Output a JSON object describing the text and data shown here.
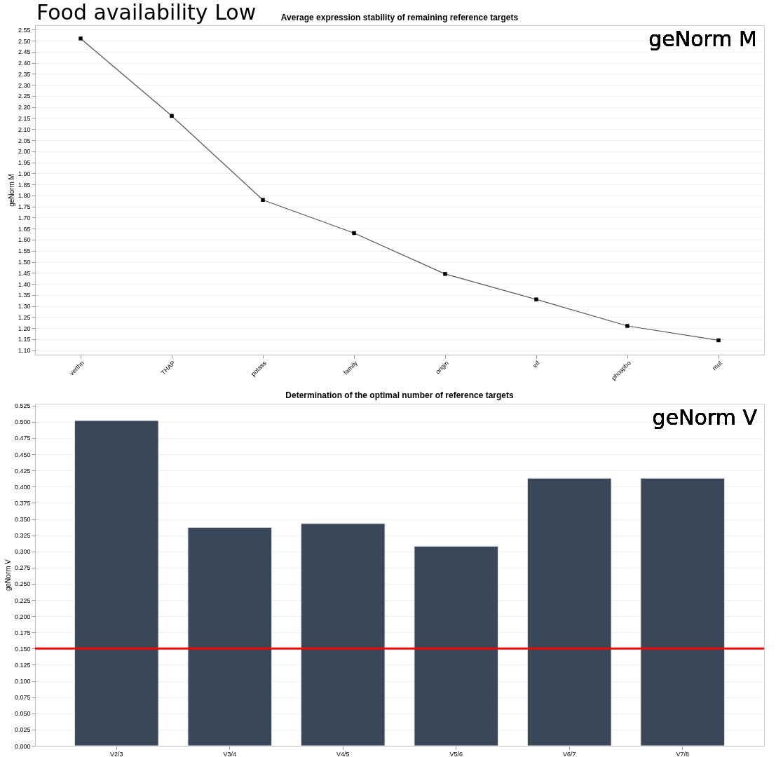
{
  "chart_data": [
    {
      "type": "line",
      "title": "Average expression stability of remaining reference targets",
      "ylabel": "geNorm M",
      "annotations": [
        "Food availability Low",
        "geNorm M"
      ],
      "categories": [
        "verthn",
        "THAP",
        "potass",
        "family",
        "origin",
        "eif",
        "phospho",
        "mut"
      ],
      "series": [
        {
          "color": "#555555",
          "values": [
            2.51,
            2.16,
            1.78,
            1.63,
            1.445,
            1.33,
            1.21,
            1.145
          ]
        }
      ],
      "ylim": [
        1.08,
        2.57
      ],
      "yticks": [
        {
          "value": 1.1,
          "label": "1.10"
        },
        {
          "value": 1.15,
          "label": "1.15"
        },
        {
          "value": 1.2,
          "label": "1.20"
        },
        {
          "value": 1.25,
          "label": "1.25"
        },
        {
          "value": 1.3,
          "label": "1.30"
        },
        {
          "value": 1.35,
          "label": "1.35"
        },
        {
          "value": 1.4,
          "label": "1.40"
        },
        {
          "value": 1.45,
          "label": "1.45"
        },
        {
          "value": 1.5,
          "label": "1.50"
        },
        {
          "value": 1.55,
          "label": "1.55"
        },
        {
          "value": 1.6,
          "label": "1.60"
        },
        {
          "value": 1.65,
          "label": "1.65"
        },
        {
          "value": 1.7,
          "label": "1.70"
        },
        {
          "value": 1.75,
          "label": "1.75"
        },
        {
          "value": 1.8,
          "label": "1.80"
        },
        {
          "value": 1.85,
          "label": "1.85"
        },
        {
          "value": 1.9,
          "label": "1.90"
        },
        {
          "value": 1.95,
          "label": "1.95"
        },
        {
          "value": 2.0,
          "label": "2.00"
        },
        {
          "value": 2.05,
          "label": "2.05"
        },
        {
          "value": 2.1,
          "label": "2.10"
        },
        {
          "value": 2.15,
          "label": "2.15"
        },
        {
          "value": 2.2,
          "label": "2.20"
        },
        {
          "value": 2.25,
          "label": "2.25"
        },
        {
          "value": 2.3,
          "label": "2.30"
        },
        {
          "value": 2.35,
          "label": "2.35"
        },
        {
          "value": 2.4,
          "label": "2.40"
        },
        {
          "value": 2.45,
          "label": "2.45"
        },
        {
          "value": 2.5,
          "label": "2.50"
        },
        {
          "value": 2.55,
          "label": "2.55"
        }
      ],
      "grid": "y",
      "marker": "square",
      "line_style": "solid"
    },
    {
      "type": "bar",
      "title": "Determination of the optimal number of reference targets",
      "ylabel": "geNorm V",
      "annotations": [
        "geNorm V"
      ],
      "categories": [
        "V2/3",
        "V3/4",
        "V4/5",
        "V5/6",
        "V6/7",
        "V7/8"
      ],
      "series": [
        {
          "color": "#3a4759",
          "values": [
            0.502,
            0.337,
            0.343,
            0.308,
            0.413,
            0.413
          ]
        }
      ],
      "ylim": [
        0,
        0.528
      ],
      "yticks": [
        {
          "value": 0,
          "label": "0.000"
        },
        {
          "value": 0.025,
          "label": "0.025"
        },
        {
          "value": 0.05,
          "label": "0.050"
        },
        {
          "value": 0.075,
          "label": "0.075"
        },
        {
          "value": 0.1,
          "label": "0.100"
        },
        {
          "value": 0.125,
          "label": "0.125"
        },
        {
          "value": 0.15,
          "label": "0.150"
        },
        {
          "value": 0.175,
          "label": "0.175"
        },
        {
          "value": 0.2,
          "label": "0.200"
        },
        {
          "value": 0.225,
          "label": "0.225"
        },
        {
          "value": 0.25,
          "label": "0.250"
        },
        {
          "value": 0.275,
          "label": "0.275"
        },
        {
          "value": 0.3,
          "label": "0.300"
        },
        {
          "value": 0.325,
          "label": "0.325"
        },
        {
          "value": 0.35,
          "label": "0.350"
        },
        {
          "value": 0.375,
          "label": "0.375"
        },
        {
          "value": 0.4,
          "label": "0.400"
        },
        {
          "value": 0.425,
          "label": "0.425"
        },
        {
          "value": 0.45,
          "label": "0.450"
        },
        {
          "value": 0.475,
          "label": "0.475"
        },
        {
          "value": 0.5,
          "label": "0.500"
        },
        {
          "value": 0.525,
          "label": "0.525"
        }
      ],
      "grid": "y",
      "ref_lines": [
        {
          "axis": "y",
          "value": 0.15,
          "color": "#ff0000",
          "line_style": "solid"
        }
      ]
    }
  ]
}
